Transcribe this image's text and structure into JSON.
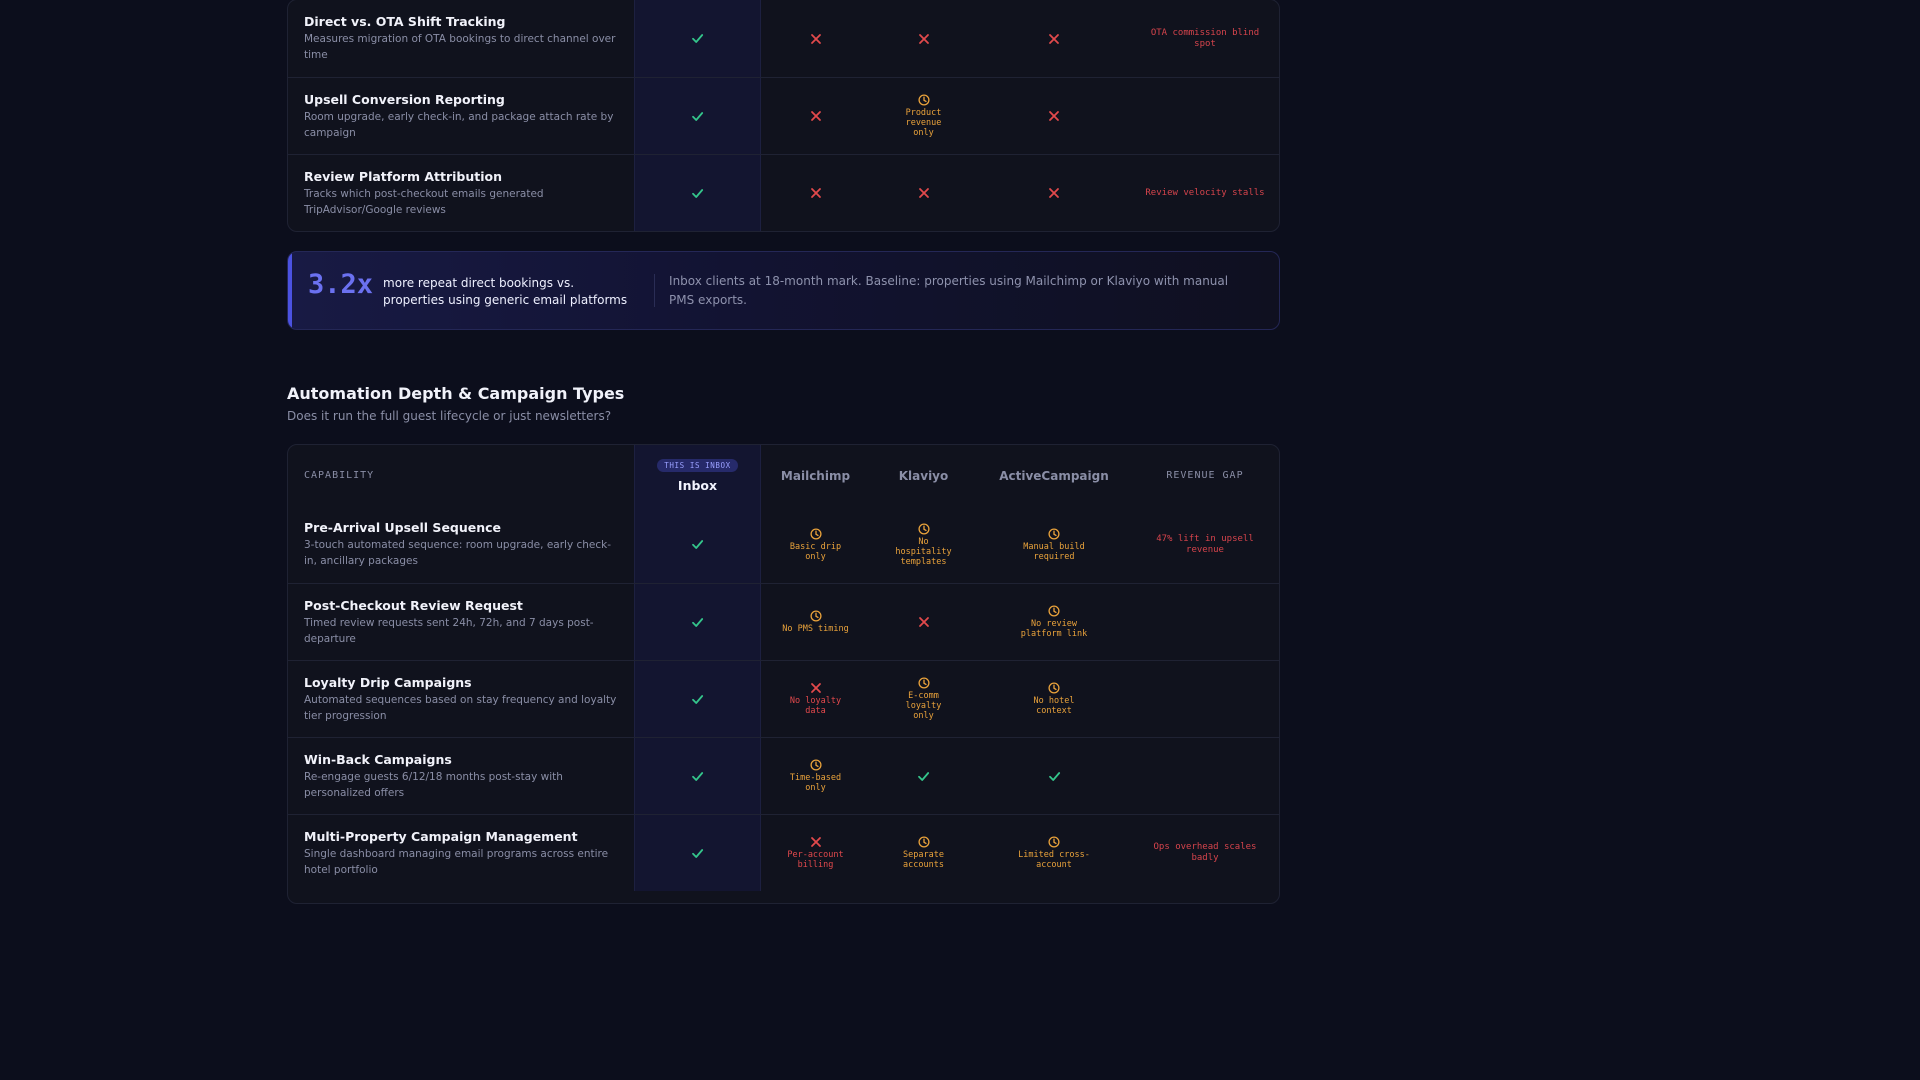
{
  "top_table": {
    "rows": [
      {
        "title": "Direct vs. OTA Shift Tracking",
        "desc": "Measures migration of OTA bookings to direct channel over time",
        "inbox": {
          "status": "check"
        },
        "mailchimp": {
          "status": "cross"
        },
        "klaviyo": {
          "status": "cross"
        },
        "activecampaign": {
          "status": "cross"
        },
        "gap": "OTA commission blind spot"
      },
      {
        "title": "Upsell Conversion Reporting",
        "desc": "Room upgrade, early check-in, and package attach rate by campaign",
        "inbox": {
          "status": "check"
        },
        "mailchimp": {
          "status": "cross"
        },
        "klaviyo": {
          "status": "partial",
          "note": "Product revenue only"
        },
        "activecampaign": {
          "status": "cross"
        },
        "gap": ""
      },
      {
        "title": "Review Platform Attribution",
        "desc": "Tracks which post-checkout emails generated TripAdvisor/Google reviews",
        "inbox": {
          "status": "check"
        },
        "mailchimp": {
          "status": "cross"
        },
        "klaviyo": {
          "status": "cross"
        },
        "activecampaign": {
          "status": "cross"
        },
        "gap": "Review velocity stalls"
      }
    ]
  },
  "stat": {
    "value": "3.2x",
    "label": "more repeat direct bookings vs. properties using generic email platforms",
    "desc": "Inbox clients at 18-month mark. Baseline: properties using Mailchimp or Klaviyo with manual PMS exports."
  },
  "section": {
    "title": "Automation Depth & Campaign Types",
    "subtitle": "Does it run the full guest lifecycle or just newsletters?"
  },
  "bottom_table": {
    "header": {
      "capability": "CAPABILITY",
      "badge": "THIS IS INBOX",
      "inbox": "Inbox",
      "mailchimp": "Mailchimp",
      "klaviyo": "Klaviyo",
      "activecampaign": "ActiveCampaign",
      "gap": "REVENUE GAP"
    },
    "rows": [
      {
        "title": "Pre-Arrival Upsell Sequence",
        "desc": "3-touch automated sequence: room upgrade, early check-in, ancillary packages",
        "inbox": {
          "status": "check"
        },
        "mailchimp": {
          "status": "partial",
          "note": "Basic drip only"
        },
        "klaviyo": {
          "status": "partial",
          "note": "No hospitality templates"
        },
        "activecampaign": {
          "status": "partial",
          "note": "Manual build required"
        },
        "gap": "47% lift in upsell revenue"
      },
      {
        "title": "Post-Checkout Review Request",
        "desc": "Timed review requests sent 24h, 72h, and 7 days post-departure",
        "inbox": {
          "status": "check"
        },
        "mailchimp": {
          "status": "partial",
          "note": "No PMS timing"
        },
        "klaviyo": {
          "status": "cross"
        },
        "activecampaign": {
          "status": "partial",
          "note": "No review platform link"
        },
        "gap": ""
      },
      {
        "title": "Loyalty Drip Campaigns",
        "desc": "Automated sequences based on stay frequency and loyalty tier progression",
        "inbox": {
          "status": "check"
        },
        "mailchimp": {
          "status": "cross",
          "note": "No loyalty data"
        },
        "klaviyo": {
          "status": "partial",
          "note": "E-comm loyalty only"
        },
        "activecampaign": {
          "status": "partial",
          "note": "No hotel context"
        },
        "gap": ""
      },
      {
        "title": "Win-Back Campaigns",
        "desc": "Re-engage guests 6/12/18 months post-stay with personalized offers",
        "inbox": {
          "status": "check"
        },
        "mailchimp": {
          "status": "partial",
          "note": "Time-based only"
        },
        "klaviyo": {
          "status": "check"
        },
        "activecampaign": {
          "status": "check"
        },
        "gap": ""
      },
      {
        "title": "Multi-Property Campaign Management",
        "desc": "Single dashboard managing email programs across entire hotel portfolio",
        "inbox": {
          "status": "check"
        },
        "mailchimp": {
          "status": "cross",
          "note": "Per-account billing"
        },
        "klaviyo": {
          "status": "partial",
          "note": "Separate accounts"
        },
        "activecampaign": {
          "status": "partial",
          "note": "Limited cross-account"
        },
        "gap": "Ops overhead scales badly"
      }
    ]
  },
  "colors": {
    "check": "#34c58b",
    "cross": "#e2494c",
    "partial": "#e9a23b",
    "accent": "#4b52e0"
  }
}
